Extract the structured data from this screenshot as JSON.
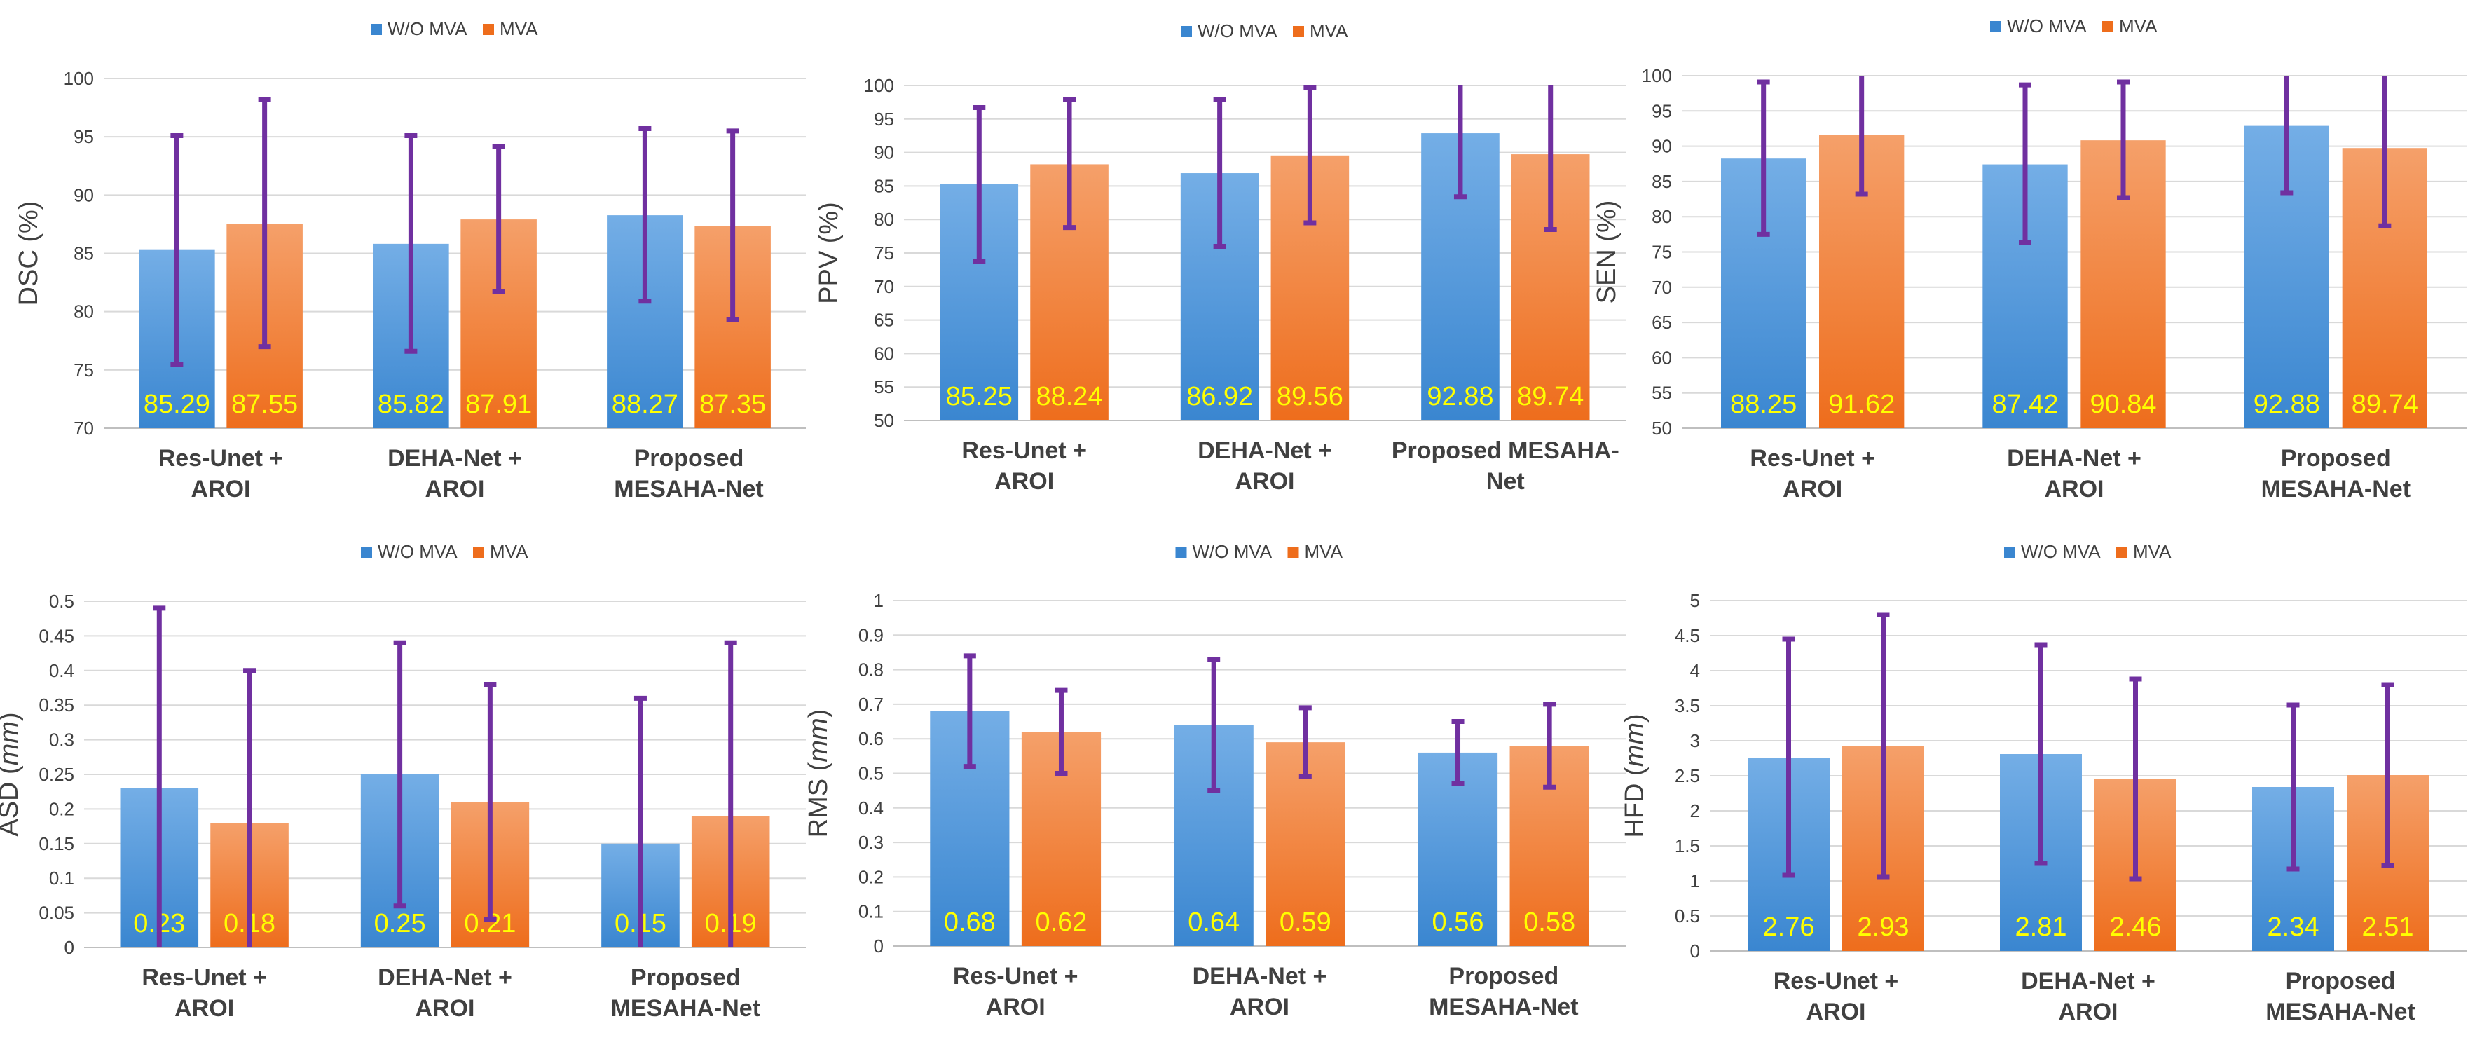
{
  "colors": {
    "wo_mva_top": "#74aee6",
    "wo_mva_bottom": "#3a86d0",
    "mva_top": "#f5a06a",
    "mva_bottom": "#ee6d1c",
    "error_bar": "#7030a0",
    "data_label": "#ffff00"
  },
  "chart_data": [
    {
      "type": "bar",
      "ylabel": "DSC (%)",
      "ylabel_unit": "",
      "ylim": [
        70,
        100
      ],
      "ytick_step": 5,
      "ytick_decimals": 0,
      "legend_position": "top-center",
      "categories": [
        [
          "Res-Unet +",
          "AROI"
        ],
        [
          "DEHA-Net +",
          "AROI"
        ],
        [
          "Proposed",
          "MESAHA-Net"
        ]
      ],
      "series": [
        {
          "name": "W/O MVA",
          "values": [
            85.29,
            85.82,
            88.27
          ],
          "labels": [
            "85.29",
            "85.82",
            "88.27"
          ],
          "error_low": [
            75.5,
            76.6,
            80.9
          ],
          "error_high": [
            95.1,
            95.1,
            95.7
          ]
        },
        {
          "name": "MVA",
          "values": [
            87.55,
            87.91,
            87.35
          ],
          "labels": [
            "87.55",
            "87.91",
            "87.35"
          ],
          "error_low": [
            77.0,
            81.7,
            79.3
          ],
          "error_high": [
            98.2,
            94.2,
            95.5
          ]
        }
      ]
    },
    {
      "type": "bar",
      "ylabel": "PPV (%)",
      "ylabel_unit": "",
      "ylim": [
        50,
        100
      ],
      "ytick_step": 5,
      "ytick_decimals": 0,
      "legend_position": "top-center",
      "categories": [
        [
          "Res-Unet +",
          "AROI"
        ],
        [
          "DEHA-Net +",
          "AROI"
        ],
        [
          "Proposed MESAHA-",
          "Net"
        ]
      ],
      "series": [
        {
          "name": "W/O MVA",
          "values": [
            85.25,
            86.92,
            92.88
          ],
          "labels": [
            "85.25",
            "86.92",
            "92.88"
          ],
          "error_low": [
            73.8,
            76.0,
            83.4
          ],
          "error_high": [
            96.7,
            97.9,
            100
          ]
        },
        {
          "name": "MVA",
          "values": [
            88.24,
            89.56,
            89.74
          ],
          "labels": [
            "88.24",
            "89.56",
            "89.74"
          ],
          "error_low": [
            78.8,
            79.5,
            78.5
          ],
          "error_high": [
            97.9,
            99.7,
            100
          ]
        }
      ]
    },
    {
      "type": "bar",
      "ylabel": "SEN (%)",
      "ylabel_unit": "",
      "ylim": [
        50,
        100
      ],
      "ytick_step": 5,
      "ytick_decimals": 0,
      "legend_position": "top-center",
      "categories": [
        [
          "Res-Unet +",
          "AROI"
        ],
        [
          "DEHA-Net +",
          "AROI"
        ],
        [
          "Proposed",
          "MESAHA-Net"
        ]
      ],
      "series": [
        {
          "name": "W/O MVA",
          "values": [
            88.25,
            87.42,
            92.88
          ],
          "labels": [
            "88.25",
            "87.42",
            "92.88"
          ],
          "error_low": [
            77.5,
            76.3,
            83.4
          ],
          "error_high": [
            99.1,
            98.7,
            100
          ]
        },
        {
          "name": "MVA",
          "values": [
            91.62,
            90.84,
            89.74
          ],
          "labels": [
            "91.62",
            "90.84",
            "89.74"
          ],
          "error_low": [
            83.2,
            82.7,
            78.7
          ],
          "error_high": [
            100,
            99.1,
            100
          ]
        }
      ]
    },
    {
      "type": "bar",
      "ylabel": "ASD (",
      "ylabel_unit": "mm",
      "ylim": [
        0,
        0.5
      ],
      "ytick_step": 0.05,
      "ytick_decimals": 2,
      "legend_position": "top-center",
      "categories": [
        [
          "Res-Unet +",
          "AROI"
        ],
        [
          "DEHA-Net +",
          "AROI"
        ],
        [
          "Proposed",
          "MESAHA-Net"
        ]
      ],
      "series": [
        {
          "name": "W/O MVA",
          "values": [
            0.23,
            0.25,
            0.15
          ],
          "labels": [
            "0.23",
            "0.25",
            "0.15"
          ],
          "error_low": [
            0,
            0.06,
            0
          ],
          "error_high": [
            0.49,
            0.44,
            0.36
          ]
        },
        {
          "name": "MVA",
          "values": [
            0.18,
            0.21,
            0.19
          ],
          "labels": [
            "0.18",
            "0.21",
            "0.19"
          ],
          "error_low": [
            0,
            0.04,
            0
          ],
          "error_high": [
            0.4,
            0.38,
            0.44
          ]
        }
      ]
    },
    {
      "type": "bar",
      "ylabel": "RMS (",
      "ylabel_unit": "mm",
      "ylim": [
        0,
        1
      ],
      "ytick_step": 0.1,
      "ytick_decimals": 1,
      "legend_position": "top-center",
      "categories": [
        [
          "Res-Unet +",
          "AROI"
        ],
        [
          "DEHA-Net +",
          "AROI"
        ],
        [
          "Proposed",
          "MESAHA-Net"
        ]
      ],
      "series": [
        {
          "name": "W/O MVA",
          "values": [
            0.68,
            0.64,
            0.56
          ],
          "labels": [
            "0.68",
            "0.64",
            "0.56"
          ],
          "error_low": [
            0.52,
            0.45,
            0.47
          ],
          "error_high": [
            0.84,
            0.83,
            0.65
          ]
        },
        {
          "name": "MVA",
          "values": [
            0.62,
            0.59,
            0.58
          ],
          "labels": [
            "0.62",
            "0.59",
            "0.58"
          ],
          "error_low": [
            0.5,
            0.49,
            0.46
          ],
          "error_high": [
            0.74,
            0.69,
            0.7
          ]
        }
      ]
    },
    {
      "type": "bar",
      "ylabel": "HFD (",
      "ylabel_unit": "mm",
      "ylim": [
        0,
        5
      ],
      "ytick_step": 0.5,
      "ytick_decimals": 1,
      "legend_position": "top-center",
      "categories": [
        [
          "Res-Unet +",
          "AROI"
        ],
        [
          "DEHA-Net +",
          "AROI"
        ],
        [
          "Proposed",
          "MESAHA-Net"
        ]
      ],
      "series": [
        {
          "name": "W/O MVA",
          "values": [
            2.76,
            2.81,
            2.34
          ],
          "labels": [
            "2.76",
            "2.81",
            "2.34"
          ],
          "error_low": [
            1.08,
            1.25,
            1.17
          ],
          "error_high": [
            4.45,
            4.37,
            3.51
          ]
        },
        {
          "name": "MVA",
          "values": [
            2.93,
            2.46,
            2.51
          ],
          "labels": [
            "2.93",
            "2.46",
            "2.51"
          ],
          "error_low": [
            1.06,
            1.03,
            1.22
          ],
          "error_high": [
            4.8,
            3.88,
            3.8
          ]
        }
      ]
    }
  ]
}
